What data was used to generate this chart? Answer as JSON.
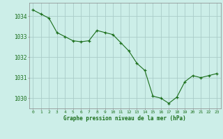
{
  "x": [
    0,
    1,
    2,
    3,
    4,
    5,
    6,
    7,
    8,
    9,
    10,
    11,
    12,
    13,
    14,
    15,
    16,
    17,
    18,
    19,
    20,
    21,
    22,
    23
  ],
  "y": [
    1034.3,
    1034.1,
    1033.9,
    1033.2,
    1033.0,
    1032.8,
    1032.75,
    1032.8,
    1033.3,
    1033.2,
    1033.1,
    1032.7,
    1032.3,
    1031.7,
    1031.35,
    1030.1,
    1030.0,
    1029.75,
    1030.05,
    1030.8,
    1031.1,
    1031.0,
    1031.1,
    1031.2
  ],
  "line_color": "#1a6e1a",
  "marker_color": "#1a6e1a",
  "bg_color": "#cceee8",
  "grid_color": "#aaccc8",
  "xlabel": "Graphe pression niveau de la mer (hPa)",
  "xlabel_color": "#1a6e1a",
  "tick_color": "#1a6e1a",
  "ytick_labels": [
    1030,
    1031,
    1032,
    1033,
    1034
  ],
  "xtick_labels": [
    0,
    1,
    2,
    3,
    4,
    5,
    6,
    7,
    8,
    9,
    10,
    11,
    12,
    13,
    14,
    15,
    16,
    17,
    18,
    19,
    20,
    21,
    22,
    23
  ],
  "ylim": [
    1029.5,
    1034.65
  ],
  "xlim": [
    -0.5,
    23.5
  ]
}
